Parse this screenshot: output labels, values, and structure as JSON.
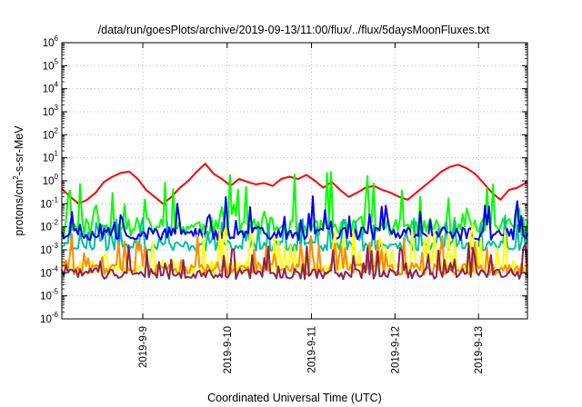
{
  "chart_data": {
    "type": "line",
    "title": "/data/run/goesPlots/archive/2019-09-13/11:00/flux/../flux/5daysMoonFluxes.txt",
    "xlabel": "Coordinated Universal Time (UTC)",
    "ylabel": {
      "base": "protons/cm",
      "sup": "2",
      "rest": "-s-sr-MeV"
    },
    "y_scale": "log",
    "ylim_exp": [
      -6,
      6
    ],
    "y_ticks": [
      {
        "exp": -6,
        "label_base": "10",
        "label_sup": "-6"
      },
      {
        "exp": -5,
        "label_base": "10",
        "label_sup": "-5"
      },
      {
        "exp": -4,
        "label_base": "10",
        "label_sup": "-4"
      },
      {
        "exp": -3,
        "label_base": "10",
        "label_sup": "-3"
      },
      {
        "exp": -2,
        "label_base": "10",
        "label_sup": "-2"
      },
      {
        "exp": -1,
        "label_base": "10",
        "label_sup": "-1"
      },
      {
        "exp": 0,
        "label_base": "10",
        "label_sup": "0"
      },
      {
        "exp": 1,
        "label_base": "10",
        "label_sup": "1"
      },
      {
        "exp": 2,
        "label_base": "10",
        "label_sup": "2"
      },
      {
        "exp": 3,
        "label_base": "10",
        "label_sup": "3"
      },
      {
        "exp": 4,
        "label_base": "10",
        "label_sup": "4"
      },
      {
        "exp": 5,
        "label_base": "10",
        "label_sup": "5"
      },
      {
        "exp": 6,
        "label_base": "10",
        "label_sup": "6"
      }
    ],
    "xlim_days": [
      0,
      5.52
    ],
    "x_ticks": [
      {
        "label": "2019-9-9",
        "day": 0.96
      },
      {
        "label": "2019-9-10",
        "day": 1.96
      },
      {
        "label": "2019-9-11",
        "day": 2.96
      },
      {
        "label": "2019-9-12",
        "day": 3.95
      },
      {
        "label": "2019-9-13",
        "day": 4.94
      }
    ],
    "grid": true,
    "legend": "none",
    "series": [
      {
        "color": "#ff0000",
        "points": [
          [
            0,
            0.45
          ],
          [
            0.1,
            0.2
          ],
          [
            0.2,
            0.1
          ],
          [
            0.3,
            0.15
          ],
          [
            0.4,
            0.3
          ],
          [
            0.5,
            0.9
          ],
          [
            0.6,
            1.5
          ],
          [
            0.7,
            2.2
          ],
          [
            0.8,
            2.5
          ],
          [
            0.9,
            1.2
          ],
          [
            1.0,
            0.4
          ],
          [
            1.1,
            0.2
          ],
          [
            1.2,
            0.1
          ],
          [
            1.3,
            0.2
          ],
          [
            1.4,
            0.5
          ],
          [
            1.5,
            1.0
          ],
          [
            1.6,
            2.5
          ],
          [
            1.7,
            5.5
          ],
          [
            1.8,
            2.0
          ],
          [
            1.9,
            1.2
          ],
          [
            2.0,
            0.6
          ],
          [
            2.1,
            1.2
          ],
          [
            2.2,
            0.9
          ],
          [
            2.3,
            0.7
          ],
          [
            2.4,
            0.8
          ],
          [
            2.5,
            0.6
          ],
          [
            2.6,
            1.2
          ],
          [
            2.7,
            1.5
          ],
          [
            2.8,
            1.2
          ],
          [
            2.9,
            1.8
          ],
          [
            3.0,
            1.0
          ],
          [
            3.1,
            0.5
          ],
          [
            3.2,
            0.9
          ],
          [
            3.3,
            0.4
          ],
          [
            3.4,
            0.2
          ],
          [
            3.5,
            0.3
          ],
          [
            3.6,
            0.5
          ],
          [
            3.7,
            0.6
          ],
          [
            3.8,
            0.4
          ],
          [
            3.9,
            0.3
          ],
          [
            4.0,
            0.2
          ],
          [
            4.1,
            0.15
          ],
          [
            4.2,
            0.3
          ],
          [
            4.3,
            0.6
          ],
          [
            4.4,
            1.2
          ],
          [
            4.5,
            2.5
          ],
          [
            4.6,
            4.0
          ],
          [
            4.7,
            5.0
          ],
          [
            4.8,
            3.5
          ],
          [
            4.9,
            2.0
          ],
          [
            5.0,
            0.8
          ],
          [
            5.1,
            0.3
          ],
          [
            5.2,
            0.15
          ],
          [
            5.3,
            0.4
          ],
          [
            5.4,
            0.5
          ],
          [
            5.52,
            0.9
          ]
        ]
      },
      {
        "color": "#00ff00",
        "base": 0.01,
        "amp": 1.6,
        "seed": 11
      },
      {
        "color": "#00c0a0",
        "base": 0.0015,
        "amp": 0.9,
        "seed": 23
      },
      {
        "color": "#0000ee",
        "base": 0.005,
        "amp": 1.1,
        "seed": 37
      },
      {
        "color": "#ffff00",
        "base": 0.00018,
        "amp": 1.2,
        "seed": 51
      },
      {
        "color": "#ff8c00",
        "base": 0.00014,
        "amp": 1.0,
        "seed": 61
      },
      {
        "color": "#8b2252",
        "base": 9e-05,
        "amp": 0.9,
        "seed": 73
      }
    ]
  }
}
